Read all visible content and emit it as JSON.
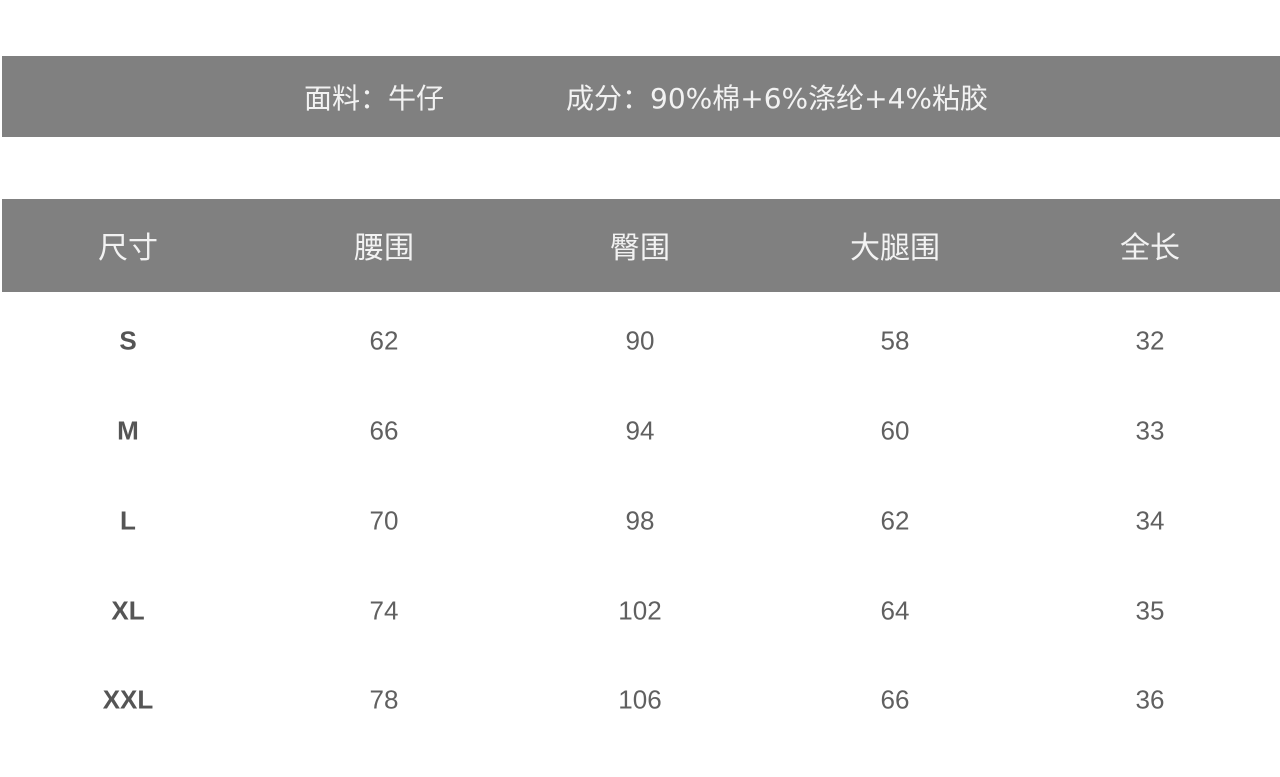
{
  "fabric": {
    "material": "面料：牛仔",
    "composition": "成分：90%棉+6%涤纶+4%粘胶"
  },
  "colors": {
    "bar": "#808080",
    "bar_text": "#f2f2f2",
    "cell_text": "#606060"
  },
  "table": {
    "headers": [
      "尺寸",
      "腰围",
      "臀围",
      "大腿围",
      "全长"
    ],
    "rows": [
      [
        "S",
        "62",
        "90",
        "58",
        "32"
      ],
      [
        "M",
        "66",
        "94",
        "60",
        "33"
      ],
      [
        "L",
        "70",
        "98",
        "62",
        "34"
      ],
      [
        "XL",
        "74",
        "102",
        "64",
        "35"
      ],
      [
        "XXL",
        "78",
        "106",
        "66",
        "36"
      ]
    ]
  }
}
